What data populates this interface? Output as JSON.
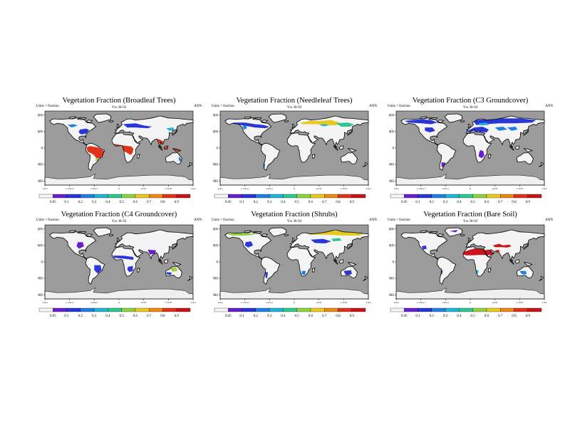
{
  "panels": [
    {
      "title": "Vegetation Fraction (Broadleaf Trees)",
      "units": "Units = fraction",
      "period": "Yrs 30-50",
      "season": "ANN"
    },
    {
      "title": "Vegetation Fraction (Needleleaf Trees)",
      "units": "Units = fraction",
      "period": "Yrs 30-50",
      "season": "ANN"
    },
    {
      "title": "Vegetation Fraction (C3 Groundcover)",
      "units": "Units = fraction",
      "period": "Yrs 30-50",
      "season": "ANN"
    },
    {
      "title": "Vegetation Fraction (C4 Groundcover)",
      "units": "Units = fraction",
      "period": "Yrs 30-50",
      "season": "ANN"
    },
    {
      "title": "Vegetation Fraction (Shrubs)",
      "units": "Units = fraction",
      "period": "Yrs 30-50",
      "season": "ANN"
    },
    {
      "title": "Vegetation Fraction (Bare Soil)",
      "units": "Units = fraction",
      "period": "Yrs 30-50",
      "season": "ANN"
    }
  ],
  "lat_labels": [
    "80N",
    "40N",
    "0",
    "40S",
    "80S"
  ],
  "lon_labels": [
    "180",
    "120W",
    "60W",
    "0",
    "60E",
    "120E",
    "180"
  ],
  "colorbar_labels": [
    "0.05",
    "0.1",
    "0.2",
    "0.3",
    "0.4",
    "0.5",
    "0.6",
    "0.7",
    "0.8",
    "0.9"
  ],
  "colorbar_colors": [
    "#f4f4f4",
    "#6a1fcf",
    "#2a36d6",
    "#1f7fe6",
    "#1fb3d8",
    "#2cc98e",
    "#8ed33f",
    "#e8c91e",
    "#ee8a12",
    "#e3321a",
    "#c8141a"
  ],
  "colors": {
    "ocean": "#9b9b9b",
    "land_base": "#f4f4f4",
    "antarctica": "#f0f0f0"
  }
}
